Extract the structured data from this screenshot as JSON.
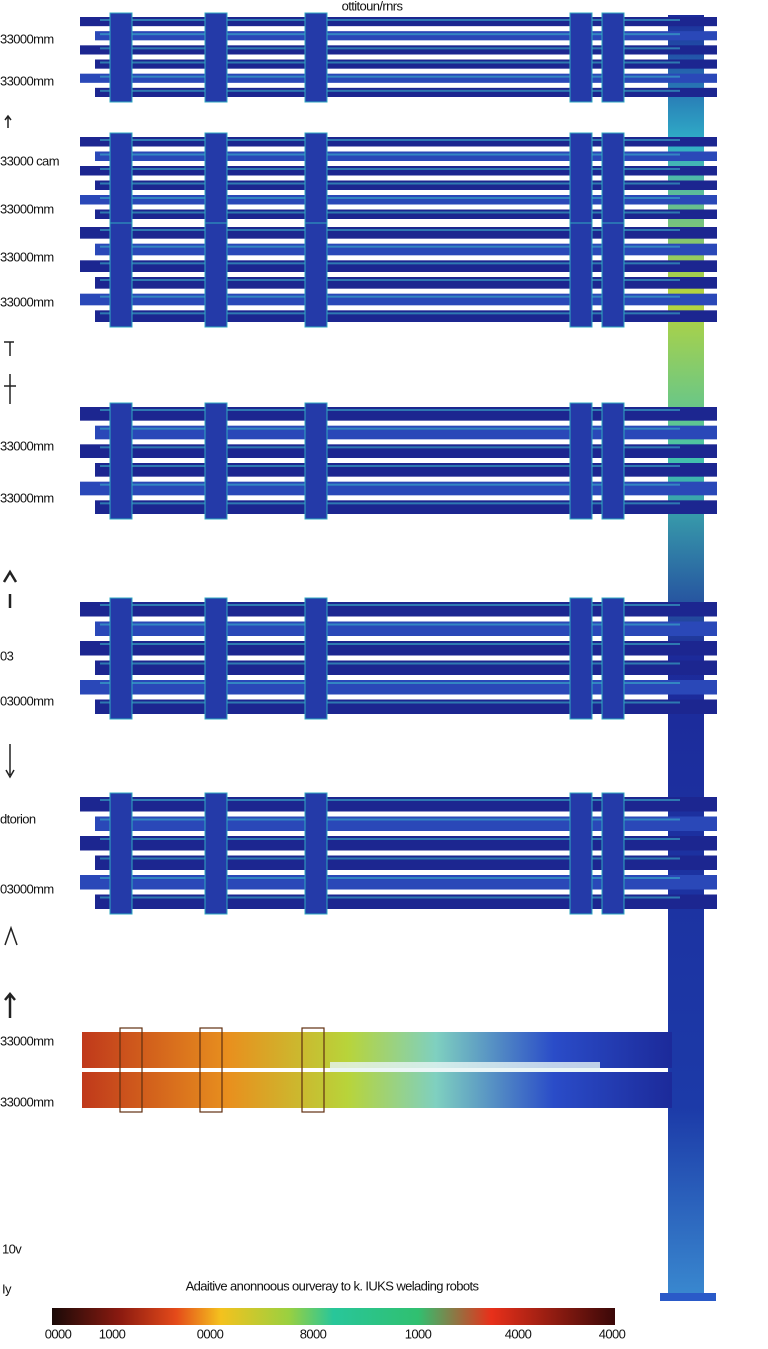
{
  "title": "ottitoun/rnrs",
  "left_labels": [
    "33000mm",
    "33000mm",
    "33000 cam",
    "33000mm",
    "33000mm",
    "33000mm",
    "33000mm",
    "33000mm",
    "03",
    "03000mm",
    "dtorion",
    "03000mm",
    "33000mm",
    "33000mm",
    "10v",
    "Iy"
  ],
  "caption": "Adaitive anonnoous ourveray to k. IUKS welading robots",
  "colorbar_labels": [
    "0000",
    "1000",
    "0000",
    "8000",
    "1000",
    "4000",
    "4000"
  ]
}
